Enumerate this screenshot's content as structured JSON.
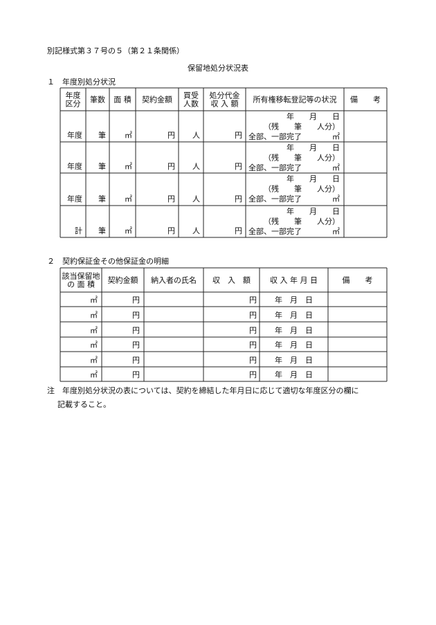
{
  "header": {
    "form_id": "別記様式第３７号の５（第２１条関係）",
    "title": "保留地処分状況表"
  },
  "section1": {
    "heading": "１　年度別処分状況",
    "table": {
      "columns": [
        [
          "年度",
          "区分"
        ],
        [
          "筆数"
        ],
        [
          "面 積"
        ],
        [
          "契約金額"
        ],
        [
          "買受",
          "人数"
        ],
        [
          "処分代金",
          "収 入 額"
        ],
        [
          "所有権移転登記等の状況"
        ],
        [
          "備　　考"
        ]
      ],
      "rows": [
        {
          "cells": [
            "年度",
            "筆",
            "㎡",
            "円",
            "人",
            "円"
          ],
          "status": [
            "年　　月　　日",
            "（残　　筆　　人分）",
            "全部、一部完了　　　　㎡"
          ]
        },
        {
          "cells": [
            "年度",
            "筆",
            "㎡",
            "円",
            "人",
            "円"
          ],
          "status": [
            "年　　月　　日",
            "（残　　筆　　人分）",
            "全部、一部完了　　　　㎡"
          ]
        },
        {
          "cells": [
            "年度",
            "筆",
            "㎡",
            "円",
            "人",
            "円"
          ],
          "status": [
            "年　　月　　日",
            "（残　　筆　　人分）",
            "全部、一部完了　　　　㎡"
          ]
        },
        {
          "cells": [
            "計",
            "筆",
            "㎡",
            "円",
            "人",
            "円"
          ],
          "status": [
            "年　　月　　日",
            "（残　　筆　　人分）",
            "全部、一部完了　　　　㎡"
          ]
        }
      ]
    }
  },
  "section2": {
    "heading": "２　契約保証金その他保証金の明細",
    "table": {
      "columns": [
        [
          "該当保留地",
          "の 面 積"
        ],
        [
          "契約金額"
        ],
        [
          "納入者の氏名"
        ],
        [
          "収　入　額"
        ],
        [
          "収 入 年 月 日"
        ],
        [
          "備　　考"
        ]
      ],
      "rows": [
        {
          "area": "㎡",
          "amount": "円",
          "income": "円",
          "date": "年　月　日"
        },
        {
          "area": "㎡",
          "amount": "円",
          "income": "円",
          "date": "年　月　日"
        },
        {
          "area": "㎡",
          "amount": "円",
          "income": "円",
          "date": "年　月　日"
        },
        {
          "area": "㎡",
          "amount": "円",
          "income": "円",
          "date": "年　月　日"
        },
        {
          "area": "㎡",
          "amount": "円",
          "income": "円",
          "date": "年　月　日"
        },
        {
          "area": "㎡",
          "amount": "円",
          "income": "円",
          "date": "年　月　日"
        }
      ]
    }
  },
  "note": {
    "lines": [
      "注　年度別処分状況の表については、契約を締結した年月日に応じて適切な年度区分の欄に",
      "記載すること。"
    ]
  }
}
